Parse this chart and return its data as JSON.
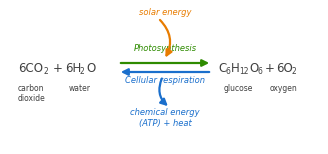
{
  "background_color": "#ffffff",
  "figsize": [
    3.28,
    1.54
  ],
  "dpi": 100,
  "label_carbon": "carbon\ndioxide",
  "label_water": "water",
  "label_glucose": "glucose",
  "label_oxygen": "oxygen",
  "photosynthesis_label": "Photosynthesis",
  "cellular_label": "Cellular respiration",
  "solar_label": "solar energy",
  "chemical_label": "chemical energy\n(ATP) + heat",
  "color_green": "#2e8b00",
  "color_blue": "#1a6fcc",
  "color_orange": "#e87c00",
  "color_formula": "#404040"
}
